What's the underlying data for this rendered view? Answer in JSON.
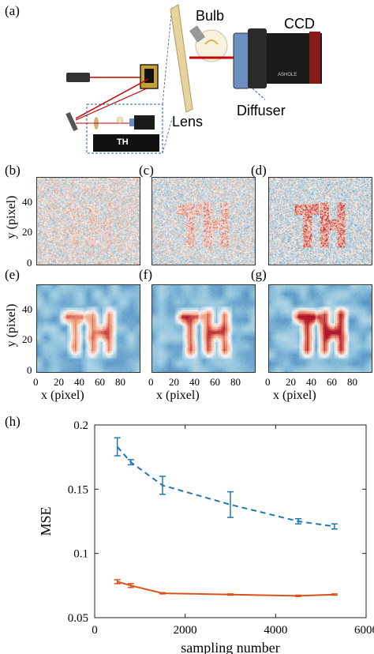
{
  "panel_a": {
    "label": "(a)",
    "bulb_label": "Bulb",
    "ccd_label": "CCD",
    "lens_label": "Lens",
    "diffuser_label": "Diffuser",
    "object_label": "TH",
    "camera_brand": "ASHOLE"
  },
  "panels_bcd": {
    "labels": [
      "(b)",
      "(c)",
      "(d)"
    ],
    "ylabel": "y (pixel)",
    "yticks": [
      "40",
      "20",
      "0"
    ]
  },
  "panels_efg": {
    "labels": [
      "(e)",
      "(f)",
      "(g)"
    ],
    "ylabel": "y (pixel)",
    "yticks": [
      "40",
      "20",
      "0"
    ],
    "xticks": [
      "0",
      "20",
      "40",
      "60",
      "80"
    ],
    "xlabel": "x (pixel)"
  },
  "panel_h": {
    "label": "(h)"
  },
  "chart_data": {
    "type": "line",
    "xlabel": "sampling number",
    "ylabel": "MSE",
    "xlim": [
      0,
      6000
    ],
    "ylim": [
      0.05,
      0.2
    ],
    "xticks": [
      0,
      2000,
      4000,
      6000
    ],
    "yticks": [
      0.05,
      0.1,
      0.15,
      0.2
    ],
    "series": [
      {
        "style": "dashed",
        "color": "#1f77b4",
        "x": [
          500,
          800,
          1500,
          3000,
          4500,
          5300
        ],
        "y": [
          0.183,
          0.171,
          0.153,
          0.138,
          0.125,
          0.121
        ],
        "err": [
          0.007,
          0.002,
          0.007,
          0.01,
          0.002,
          0.002
        ]
      },
      {
        "style": "solid",
        "color": "#d95319",
        "x": [
          500,
          800,
          1500,
          3000,
          4500,
          5300
        ],
        "y": [
          0.078,
          0.075,
          0.069,
          0.068,
          0.067,
          0.068
        ],
        "err": [
          0.0015,
          0.0015,
          0.0005,
          0.0005,
          0.0005,
          0.0005
        ]
      }
    ]
  }
}
